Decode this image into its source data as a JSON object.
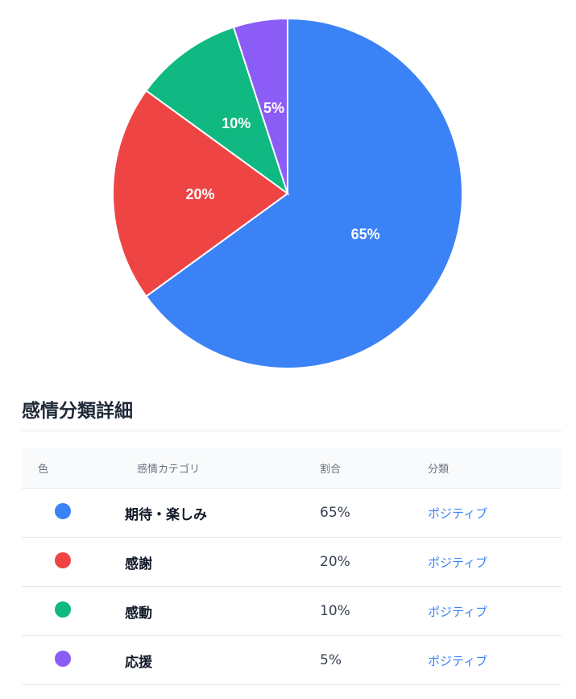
{
  "chart_data": {
    "type": "pie",
    "categories": [
      "期待・楽しみ",
      "感謝",
      "感動",
      "応援"
    ],
    "values": [
      65,
      20,
      10,
      5
    ],
    "labels": [
      "65%",
      "20%",
      "10%",
      "5%"
    ],
    "colors": [
      "#3b82f6",
      "#ef4444",
      "#10b981",
      "#8b5cf6"
    ],
    "start": "top",
    "direction": "clockwise"
  },
  "section_title": "感情分類詳細",
  "table": {
    "headers": [
      "色",
      "感情カテゴリ",
      "割合",
      "分類"
    ],
    "rows": [
      {
        "color": "#3b82f6",
        "category": "期待・楽しみ",
        "ratio": "65%",
        "class": "ポジティブ"
      },
      {
        "color": "#ef4444",
        "category": "感謝",
        "ratio": "20%",
        "class": "ポジティブ"
      },
      {
        "color": "#10b981",
        "category": "感動",
        "ratio": "10%",
        "class": "ポジティブ"
      },
      {
        "color": "#8b5cf6",
        "category": "応援",
        "ratio": "5%",
        "class": "ポジティブ"
      }
    ]
  }
}
